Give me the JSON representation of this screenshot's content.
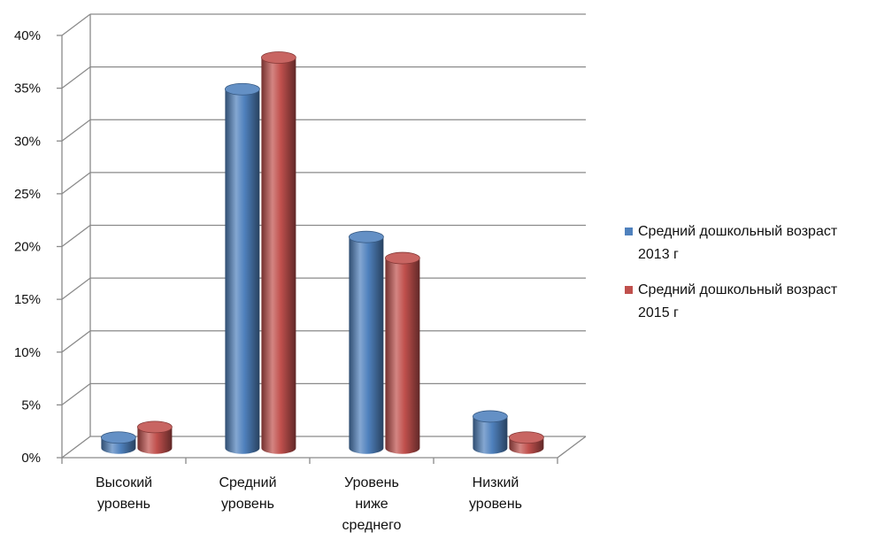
{
  "chart_data": {
    "type": "bar",
    "categories": [
      "Высокий уровень",
      "Средний уровень",
      "Уровень ниже среднего",
      "Низкий уровень"
    ],
    "series": [
      {
        "name": "Средний дошкольный возраст 2013 г",
        "values": [
          1,
          34,
          20,
          3
        ],
        "color": "#4F81BD"
      },
      {
        "name": "Средний дошкольный возраст 2015 г",
        "values": [
          2,
          37,
          18,
          1
        ],
        "color": "#C0504D"
      }
    ],
    "ylim": [
      0,
      40
    ],
    "ytick_step": 5,
    "yticks": [
      "0%",
      "5%",
      "10%",
      "15%",
      "20%",
      "25%",
      "30%",
      "35%",
      "40%"
    ],
    "grid": true,
    "legend": "right"
  }
}
